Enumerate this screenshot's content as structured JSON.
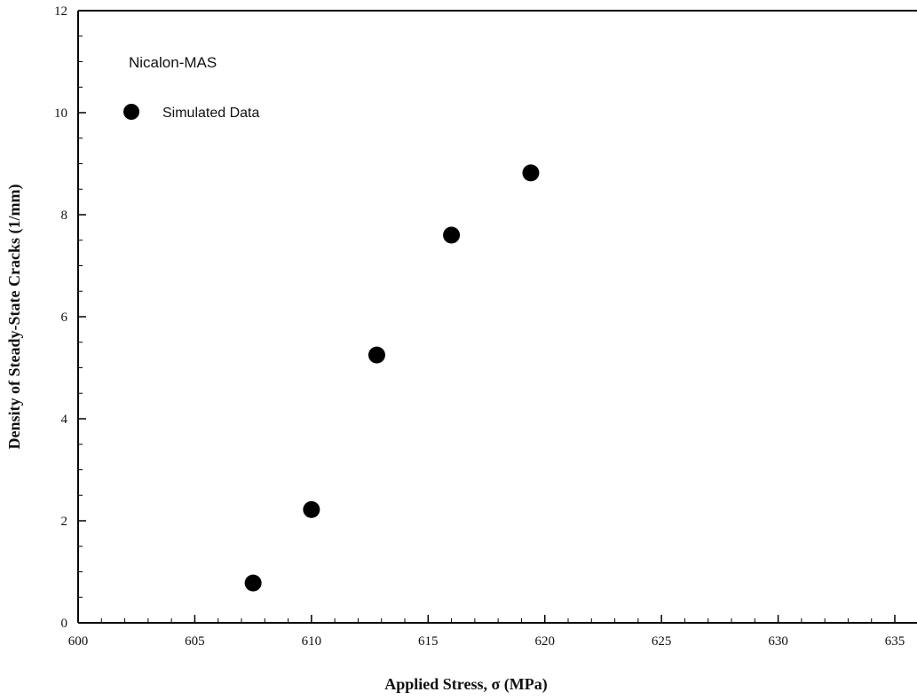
{
  "chart_data": {
    "type": "scatter",
    "annotation": "Nicalon-MAS",
    "xlabel": "Applied Stress, σ (MPa)",
    "ylabel": "Density of Steady-State Cracks (1/mm)",
    "xlim": [
      600,
      635
    ],
    "ylim": [
      0,
      12
    ],
    "x_ticks": [
      600,
      605,
      610,
      615,
      620,
      625,
      630,
      635
    ],
    "y_ticks": [
      0,
      2,
      4,
      6,
      8,
      10,
      12
    ],
    "grid": false,
    "legend_position": "top-left",
    "series": [
      {
        "name": "Simulated Data",
        "marker": "filled-circle",
        "color": "#000000",
        "x": [
          607.5,
          610.0,
          612.8,
          616.0,
          619.4
        ],
        "y": [
          0.78,
          2.22,
          5.25,
          7.6,
          8.82
        ]
      }
    ]
  }
}
